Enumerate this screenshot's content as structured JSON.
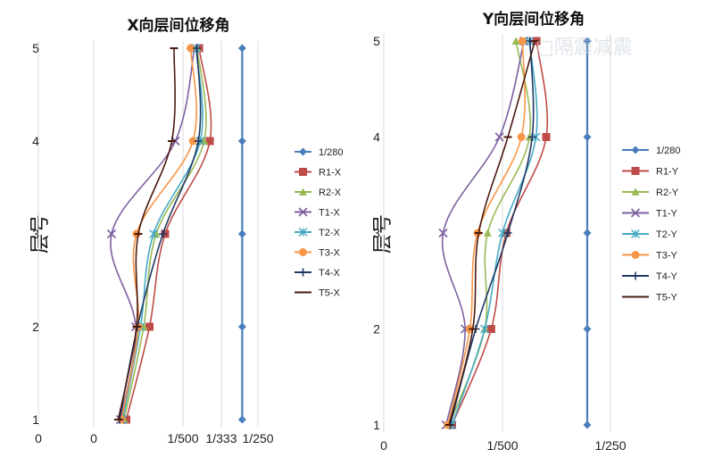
{
  "watermark": "□隔震减震",
  "colors": {
    "1/280": "#4a7ebb",
    "R1": "#be4b48",
    "R2": "#98b954",
    "T1": "#7d60a0",
    "T2": "#46aac4",
    "T3": "#f79646",
    "T4": "#1f3864",
    "T5": "#4a1a10"
  },
  "chart_data": [
    {
      "type": "line",
      "title": "X向层间位移角",
      "ylabel": "层号",
      "xlabel": "",
      "x_tick_labels": [
        "0",
        "0",
        "1/500",
        "1/333",
        "1/250"
      ],
      "y_ticks": [
        1,
        2,
        3,
        4,
        5
      ],
      "ylim": [
        1,
        5
      ],
      "legend_position": "right",
      "note": "x values are interstory drift ratios; categories are floors 1-5",
      "floors": [
        1,
        2,
        3,
        4,
        5
      ],
      "series": [
        {
          "name": "1/280",
          "key": "1/280",
          "marker": "diamond",
          "values": [
            0.00357,
            0.00357,
            0.00357,
            0.00357,
            0.00357
          ]
        },
        {
          "name": "R1-X",
          "key": "R1",
          "marker": "square",
          "values": [
            0.00073,
            0.00125,
            0.0016,
            0.0027,
            0.00242
          ]
        },
        {
          "name": "R2-X",
          "key": "R2",
          "marker": "triangle",
          "values": [
            0.00068,
            0.00112,
            0.0014,
            0.00255,
            0.00237
          ]
        },
        {
          "name": "T1-X",
          "key": "T1",
          "marker": "x",
          "values": [
            0.0006,
            0.00094,
            0.0004,
            0.00183,
            0.0023
          ]
        },
        {
          "name": "T2-X",
          "key": "T2",
          "marker": "asterisk",
          "values": [
            0.00065,
            0.00105,
            0.00134,
            0.00245,
            0.00234
          ]
        },
        {
          "name": "T3-X",
          "key": "T3",
          "marker": "circle",
          "values": [
            0.00062,
            0.001,
            0.00096,
            0.00226,
            0.0022
          ]
        },
        {
          "name": "T4-X",
          "key": "T4",
          "marker": "plus",
          "values": [
            0.00058,
            0.00098,
            0.00155,
            0.0024,
            0.00236
          ]
        },
        {
          "name": "T5-X",
          "key": "T5",
          "marker": "dash",
          "values": [
            0.00055,
            0.00096,
            0.001,
            0.00175,
            0.0018
          ]
        }
      ]
    },
    {
      "type": "line",
      "title": "Y向层间位移角",
      "ylabel": "层号",
      "xlabel": "",
      "x_tick_labels": [
        "0",
        "1/500",
        "1/250"
      ],
      "y_ticks": [
        1,
        2,
        3,
        4,
        5
      ],
      "ylim": [
        1,
        5
      ],
      "legend_position": "right",
      "note": "x values are interstory drift ratios; categories are floors 1-5",
      "floors": [
        1,
        2,
        3,
        4,
        5
      ],
      "series": [
        {
          "name": "1/280",
          "key": "1/280",
          "marker": "diamond",
          "values": [
            0.00357,
            0.00357,
            0.00357,
            0.00357,
            0.00357
          ]
        },
        {
          "name": "R1-Y",
          "key": "R1",
          "marker": "square",
          "values": [
            0.00115,
            0.00181,
            0.00207,
            0.00281,
            0.00263
          ]
        },
        {
          "name": "R2-Y",
          "key": "R2",
          "marker": "triangle",
          "values": [
            0.0011,
            0.0017,
            0.00175,
            0.0025,
            0.00225
          ]
        },
        {
          "name": "T1-Y",
          "key": "T1",
          "marker": "x",
          "values": [
            0.00105,
            0.00137,
            0.001,
            0.00195,
            0.0024
          ]
        },
        {
          "name": "T2-Y",
          "key": "T2",
          "marker": "asterisk",
          "values": [
            0.00115,
            0.0017,
            0.002,
            0.00262,
            0.0025
          ]
        },
        {
          "name": "T3-Y",
          "key": "T3",
          "marker": "circle",
          "values": [
            0.00108,
            0.00145,
            0.00158,
            0.00235,
            0.00237
          ]
        },
        {
          "name": "T4-Y",
          "key": "T4",
          "marker": "plus",
          "values": [
            0.00112,
            0.00155,
            0.0021,
            0.00255,
            0.00251
          ]
        },
        {
          "name": "T5-Y",
          "key": "T5",
          "marker": "dash",
          "values": [
            0.0011,
            0.0015,
            0.0016,
            0.0021,
            0.0026
          ]
        }
      ]
    }
  ]
}
